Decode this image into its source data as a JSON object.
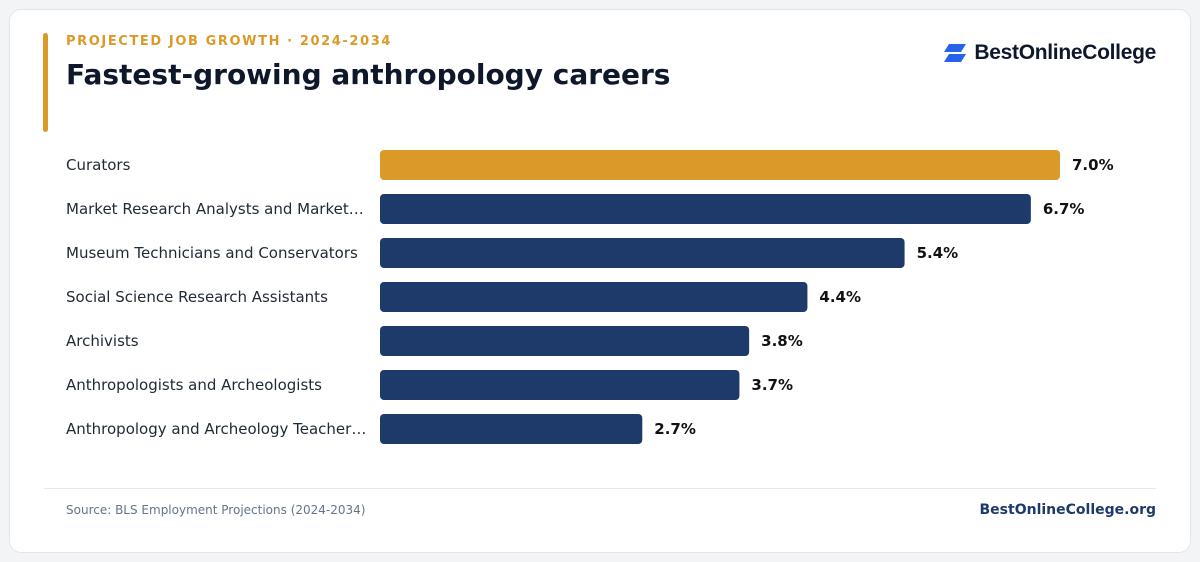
{
  "header": {
    "kicker": "PROJECTED JOB GROWTH · 2024-2034",
    "brand_name": "BestOnlineCollege"
  },
  "footer": {
    "source": "Source: BLS Employment Projections (2024-2034)",
    "site": "BestOnlineCollege.org"
  },
  "colors": {
    "highlight": "#DB9A28",
    "bar": "#1E3A6B",
    "title": "#0F172A",
    "brand_icon": "#2563EB"
  },
  "chart_data": {
    "type": "bar",
    "orientation": "horizontal",
    "title": "Fastest-growing anthropology careers",
    "xlabel": "",
    "ylabel": "",
    "xlim": [
      0,
      7.0
    ],
    "grid": false,
    "legend": "none",
    "highlight_index": 0,
    "categories": [
      "Curators",
      "Market Research Analysts and Market…",
      "Museum Technicians and Conservators",
      "Social Science Research Assistants",
      "Archivists",
      "Anthropologists and Archeologists",
      "Anthropology and Archeology Teacher…"
    ],
    "values": [
      7.0,
      6.7,
      5.4,
      4.4,
      3.8,
      3.7,
      2.7
    ],
    "value_labels": [
      "7.0%",
      "6.7%",
      "5.4%",
      "4.4%",
      "3.8%",
      "3.7%",
      "2.7%"
    ]
  }
}
